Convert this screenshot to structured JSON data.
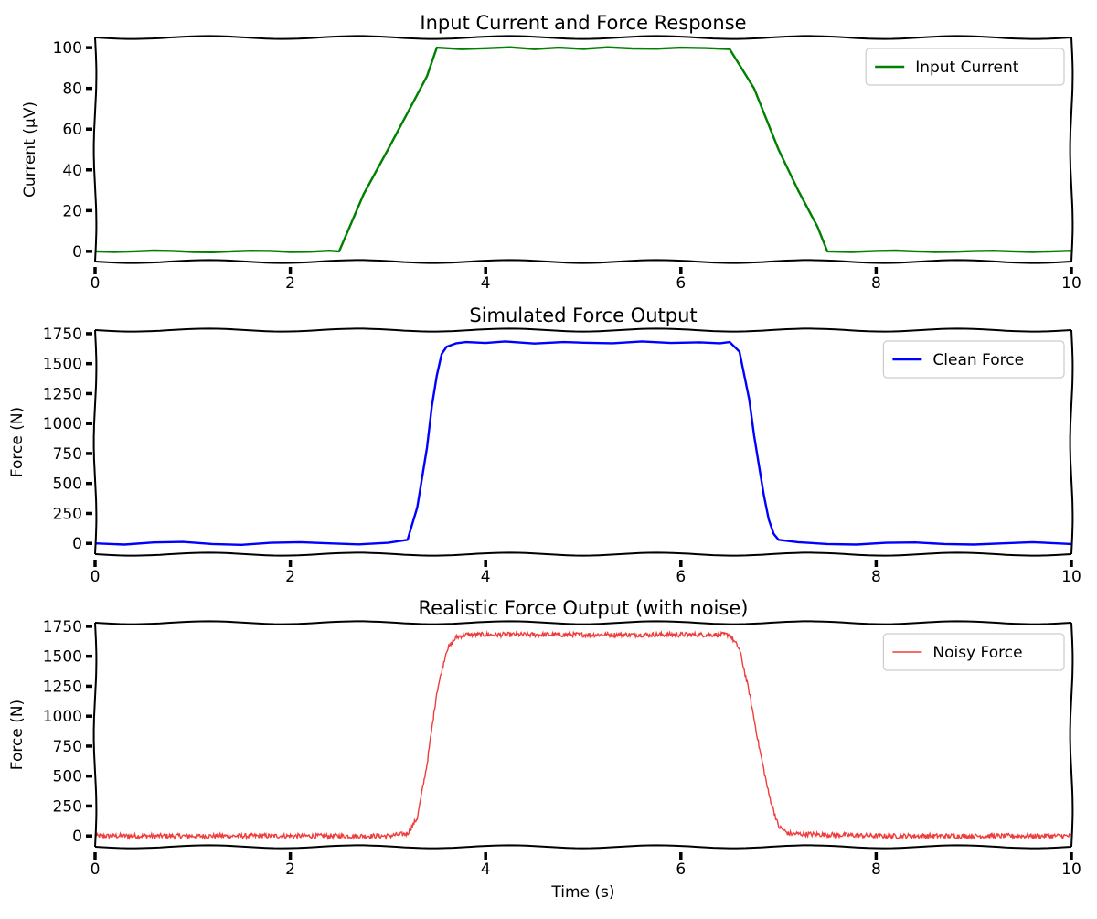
{
  "chart_data": [
    {
      "type": "line",
      "title": "Input Current and Force Response",
      "xlabel": "",
      "ylabel": "Current (µV)",
      "xlim": [
        0,
        10
      ],
      "ylim": [
        -5,
        105
      ],
      "xticks": [
        "0",
        "2",
        "4",
        "6",
        "8",
        "10"
      ],
      "yticks": [
        "0",
        "20",
        "40",
        "60",
        "80",
        "100"
      ],
      "grid": false,
      "legend_position": "top-right",
      "series": [
        {
          "name": "Input Current",
          "color": "#008000",
          "x": [
            0,
            0.2,
            0.4,
            0.6,
            0.8,
            1.0,
            1.2,
            1.4,
            1.6,
            1.8,
            2.0,
            2.2,
            2.4,
            2.5,
            2.75,
            3.0,
            3.2,
            3.4,
            3.5,
            3.75,
            4.0,
            4.25,
            4.5,
            4.75,
            5.0,
            5.25,
            5.5,
            5.75,
            6.0,
            6.25,
            6.5,
            6.75,
            7.0,
            7.2,
            7.4,
            7.5,
            7.75,
            8.0,
            8.2,
            8.4,
            8.6,
            8.8,
            9.0,
            9.2,
            9.4,
            9.6,
            9.8,
            10.0
          ],
          "values": [
            0,
            -0.3,
            0,
            0.4,
            0.2,
            -0.3,
            -0.4,
            0,
            0.3,
            0.2,
            -0.3,
            -0.2,
            0.3,
            0,
            28,
            50,
            68,
            86,
            100,
            99.3,
            99.7,
            100.2,
            99.3,
            100,
            99.4,
            100.2,
            99.6,
            99.5,
            100,
            99.8,
            99.3,
            80,
            50,
            30,
            12,
            0,
            -0.3,
            0.2,
            0.4,
            0,
            -0.3,
            -0.2,
            0.1,
            0.3,
            0,
            -0.3,
            0,
            0.3
          ]
        }
      ]
    },
    {
      "type": "line",
      "title": "Simulated Force Output",
      "xlabel": "",
      "ylabel": "Force (N)",
      "xlim": [
        0,
        10
      ],
      "ylim": [
        -90,
        1780
      ],
      "xticks": [
        "0",
        "2",
        "4",
        "6",
        "8",
        "10"
      ],
      "yticks": [
        "0",
        "250",
        "500",
        "750",
        "1000",
        "1250",
        "1500",
        "1750"
      ],
      "grid": false,
      "legend_position": "top-right",
      "series": [
        {
          "name": "Clean Force",
          "color": "#0000ff",
          "x": [
            0,
            0.3,
            0.6,
            0.9,
            1.2,
            1.5,
            1.8,
            2.1,
            2.4,
            2.7,
            3.0,
            3.2,
            3.3,
            3.4,
            3.45,
            3.5,
            3.55,
            3.6,
            3.7,
            3.8,
            4.0,
            4.2,
            4.5,
            4.8,
            5.0,
            5.3,
            5.6,
            5.9,
            6.2,
            6.4,
            6.5,
            6.6,
            6.7,
            6.75,
            6.8,
            6.85,
            6.9,
            6.95,
            7.0,
            7.2,
            7.5,
            7.8,
            8.1,
            8.4,
            8.7,
            9.0,
            9.3,
            9.6,
            10.0
          ],
          "values": [
            0,
            -10,
            8,
            12,
            -5,
            -12,
            5,
            10,
            0,
            -8,
            5,
            30,
            300,
            800,
            1150,
            1400,
            1580,
            1640,
            1670,
            1680,
            1672,
            1685,
            1668,
            1680,
            1675,
            1670,
            1685,
            1672,
            1678,
            1670,
            1680,
            1600,
            1200,
            900,
            650,
            400,
            200,
            80,
            30,
            10,
            -5,
            -10,
            5,
            8,
            -5,
            -10,
            0,
            10,
            -5
          ]
        }
      ]
    },
    {
      "type": "line",
      "title": "Realistic Force Output (with noise)",
      "xlabel": "Time (s)",
      "ylabel": "Force (N)",
      "xlim": [
        0,
        10
      ],
      "ylim": [
        -90,
        1780
      ],
      "xticks": [
        "0",
        "2",
        "4",
        "6",
        "8",
        "10"
      ],
      "yticks": [
        "0",
        "250",
        "500",
        "750",
        "1000",
        "1250",
        "1500",
        "1750"
      ],
      "grid": false,
      "legend_position": "top-right",
      "series": [
        {
          "name": "Noisy Force",
          "color": "#f03c3c",
          "x": [
            0,
            1.0,
            2.0,
            3.0,
            3.2,
            3.3,
            3.4,
            3.5,
            3.6,
            3.7,
            3.8,
            4.0,
            5.0,
            6.0,
            6.5,
            6.6,
            6.7,
            6.8,
            6.9,
            7.0,
            7.1,
            8.0,
            9.0,
            10.0
          ],
          "values": [
            0,
            0,
            0,
            0,
            20,
            150,
            600,
            1200,
            1550,
            1660,
            1680,
            1680,
            1680,
            1680,
            1680,
            1560,
            1200,
            750,
            350,
            80,
            20,
            0,
            0,
            0
          ]
        }
      ]
    }
  ]
}
